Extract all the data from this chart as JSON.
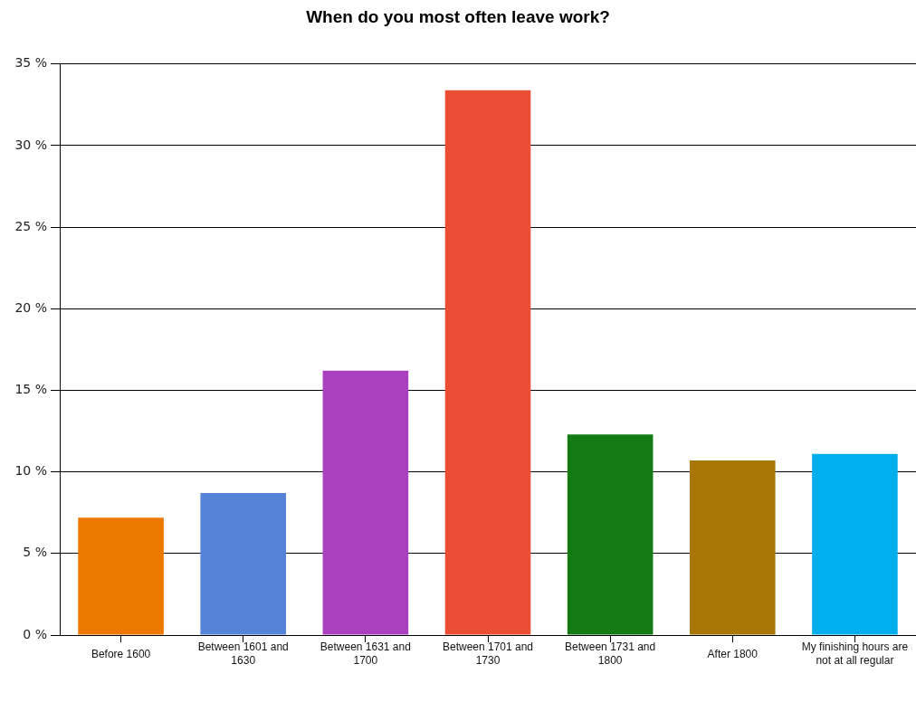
{
  "chart_data": {
    "type": "bar",
    "title": "When do you most often leave work?",
    "categories": [
      "Before 1600",
      "Between 1601 and 1630",
      "Between 1631 and 1700",
      "Between 1701 and 1730",
      "Between 1731 and 1800",
      "After 1800",
      "My finishing hours are not at all regular"
    ],
    "values": [
      7.2,
      8.7,
      16.2,
      33.4,
      12.3,
      10.7,
      11.1
    ],
    "colors": [
      "#ee7700",
      "#5483d8",
      "#a940c0",
      "#ec4e35",
      "#137a14",
      "#a77605",
      "#00aeee"
    ],
    "ylim": [
      0,
      35
    ],
    "yticks": [
      {
        "value": 0,
        "label": "0 %"
      },
      {
        "value": 5,
        "label": "5 %"
      },
      {
        "value": 10,
        "label": "10 %"
      },
      {
        "value": 15,
        "label": "15 %"
      },
      {
        "value": 20,
        "label": "20 %"
      },
      {
        "value": 25,
        "label": "25 %"
      },
      {
        "value": 30,
        "label": "30 %"
      },
      {
        "value": 35,
        "label": "35 %"
      }
    ],
    "grid": "y",
    "legend": false
  }
}
